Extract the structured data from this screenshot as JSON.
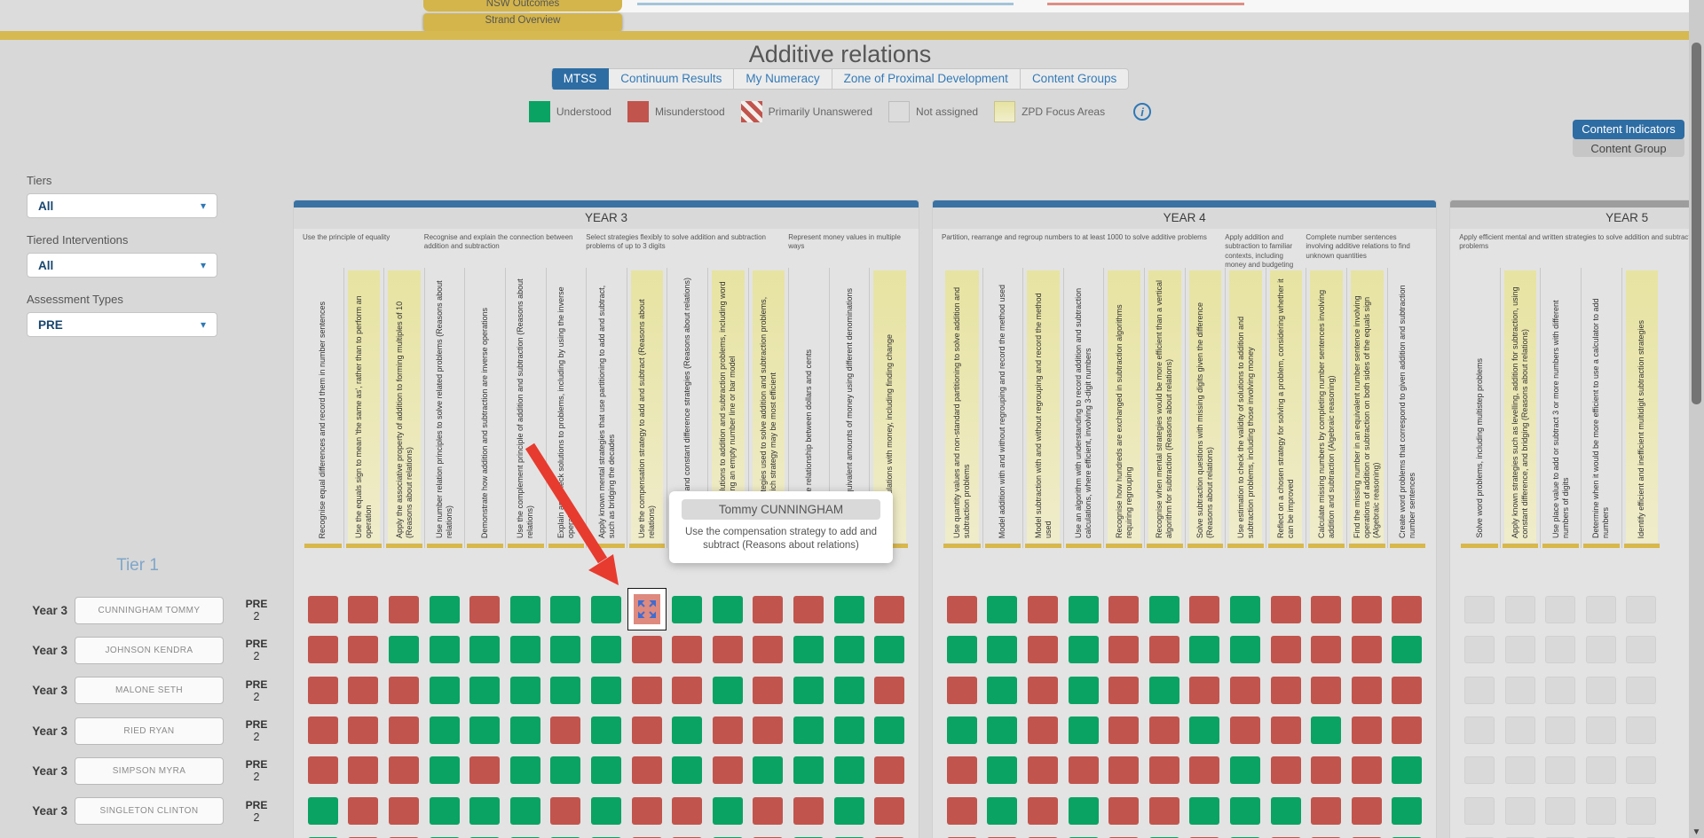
{
  "colors": {
    "understood": "#0ba364",
    "misunderstood": "#c1544c",
    "not_assigned": "#d9d9d9",
    "zpd_focus": "#e7e3a1",
    "accent_blue": "#2e6da4",
    "gold": "#d6b951",
    "year_bar_blue": "#3a72a4",
    "year_bar_gray": "#9d9d9d",
    "arrow_red": "#e63b2e"
  },
  "top": {
    "back_tabs": [
      "NSW Outcomes",
      "Strand Overview"
    ],
    "title": "Additive relations",
    "view_tabs": [
      {
        "label": "MTSS",
        "active": true
      },
      {
        "label": "Continuum Results",
        "active": false
      },
      {
        "label": "My Numeracy",
        "active": false
      },
      {
        "label": "Zone of Proximal Development",
        "active": false
      },
      {
        "label": "Content Groups",
        "active": false
      }
    ],
    "legend": [
      {
        "label": "Understood",
        "swatch": "understood"
      },
      {
        "label": "Misunderstood",
        "swatch": "misunderstood"
      },
      {
        "label": "Primarily Unanswered",
        "swatch": "striped"
      },
      {
        "label": "Not assigned",
        "swatch": "not-assigned"
      },
      {
        "label": "ZPD Focus Areas",
        "swatch": "zpd"
      }
    ],
    "info_icon": "i"
  },
  "view_toggle": {
    "primary": "Content Indicators",
    "secondary": "Content Group"
  },
  "filters": [
    {
      "label": "Tiers",
      "value": "All"
    },
    {
      "label": "Tiered Interventions",
      "value": "All"
    },
    {
      "label": "Assessment Types",
      "value": "PRE"
    }
  ],
  "tier_section": {
    "title": "Tier 1",
    "students": [
      {
        "year": "Year 3",
        "name": "CUNNINGHAM TOMMY",
        "assessment": "PRE",
        "score": "2"
      },
      {
        "year": "Year 3",
        "name": "JOHNSON KENDRA",
        "assessment": "PRE",
        "score": "2"
      },
      {
        "year": "Year 3",
        "name": "MALONE SETH",
        "assessment": "PRE",
        "score": "2"
      },
      {
        "year": "Year 3",
        "name": "RIED RYAN",
        "assessment": "PRE",
        "score": "2"
      },
      {
        "year": "Year 3",
        "name": "SIMPSON MYRA",
        "assessment": "PRE",
        "score": "2"
      },
      {
        "year": "Year 3",
        "name": "SINGLETON CLINTON",
        "assessment": "PRE",
        "score": "2"
      },
      {
        "year": "",
        "name": "",
        "assessment": "",
        "score": ""
      }
    ]
  },
  "tooltip": {
    "student": "Tommy CUNNINGHAM",
    "indicator": "Use the compensation strategy to add and subtract (Reasons about relations)"
  },
  "years": [
    {
      "label": "YEAR 3",
      "bar": "blue",
      "groups": [
        {
          "title": "Use the principle of equality",
          "cols": 3
        },
        {
          "title": "Recognise and explain the connection between addition and subtraction",
          "cols": 4
        },
        {
          "title": "Select strategies flexibly to solve addition and subtraction problems of up to 3 digits",
          "cols": 5
        },
        {
          "title": "Represent money values in multiple ways",
          "cols": 3
        }
      ],
      "columns": [
        {
          "text": "Recognise equal differences and record them in number sentences",
          "zpd": false
        },
        {
          "text": "Use the equals sign to mean 'the same as', rather than to perform an operation",
          "zpd": true
        },
        {
          "text": "Apply the associative property of addition to forming multiples of 10 (Reasons about relations)",
          "zpd": true
        },
        {
          "text": "Use number relation principles to solve related problems (Reasons about relations)",
          "zpd": false
        },
        {
          "text": "Demonstrate how addition and subtraction are inverse operations",
          "zpd": false
        },
        {
          "text": "Use the complement principle of addition and subtraction (Reasons about relations)",
          "zpd": false
        },
        {
          "text": "Explain and check solutions to problems, including by using the inverse operation",
          "zpd": false
        },
        {
          "text": "Apply known mental strategies that use partitioning to add and subtract, such as bridging the decades",
          "zpd": false
        },
        {
          "text": "Use the compensation strategy to add and subtract (Reasons about relations)",
          "zpd": true
        },
        {
          "text": "Use levelling and constant difference strategies (Reasons about relations)",
          "zpd": false
        },
        {
          "text": "Represent solutions to addition and subtraction problems, including word problems, using an empty number line or bar model",
          "zpd": true
        },
        {
          "text": "Evaluate strategies used to solve addition and subtraction problems, reasoning which strategy may be most efficient",
          "zpd": true
        },
        {
          "text": "Recognise the relationship between dollars and cents",
          "zpd": false
        },
        {
          "text": "Represent equivalent amounts of money using different denominations",
          "zpd": false
        },
        {
          "text": "Perform calculations with money, including finding change",
          "zpd": true
        }
      ],
      "rows": [
        "MMMUMUUUSUUMMUM",
        "MMUUUUUUMMMMUUU",
        "MMMUUUUUMMUMUUM",
        "MMMUUUMUMUMMUUU",
        "MMMUMUUUMUMUUUM",
        "UMMUUUMUMMUMMUM",
        "UMMUUUUUMMUMUUM"
      ]
    },
    {
      "label": "YEAR 4",
      "bar": "blue",
      "groups": [
        {
          "title": "Partition, rearrange and regroup numbers to at least 1000 to solve additive problems",
          "cols": 7
        },
        {
          "title": "Apply addition and subtraction to familiar contexts, including money and budgeting",
          "cols": 2
        },
        {
          "title": "Complete number sentences involving additive relations to find unknown quantities",
          "cols": 3
        }
      ],
      "columns": [
        {
          "text": "Use quantity values and non-standard partitioning to solve addition and subtraction problems",
          "zpd": true
        },
        {
          "text": "Model addition with and without regrouping and record the method used",
          "zpd": false
        },
        {
          "text": "Model subtraction with and without regrouping and record the method used",
          "zpd": true
        },
        {
          "text": "Use an algorithm with understanding to record addition and subtraction calculations, where efficient, involving 3-digit numbers",
          "zpd": false
        },
        {
          "text": "Recognise how hundreds are exchanged in subtraction algorithms requiring regrouping",
          "zpd": true
        },
        {
          "text": "Recognise when mental strategies would be more efficient than a vertical algorithm for subtraction (Reasons about relations)",
          "zpd": true
        },
        {
          "text": "Solve subtraction questions with missing digits given the difference (Reasons about relations)",
          "zpd": true
        },
        {
          "text": "Use estimation to check the validity of solutions to addition and subtraction problems, including those involving money",
          "zpd": true
        },
        {
          "text": "Reflect on a chosen strategy for solving a problem, considering whether it can be improved",
          "zpd": true
        },
        {
          "text": "Calculate missing numbers by completing number sentences involving addition and subtraction (Algebraic reasoning)",
          "zpd": true
        },
        {
          "text": "Find the missing number in an equivalent number sentence involving operations of addition or subtraction on both sides of the equals sign (Algebraic reasoning)",
          "zpd": true
        },
        {
          "text": "Create word problems that correspond to given addition and subtraction number sentences",
          "zpd": false
        }
      ],
      "rows": [
        "MUMUMUMUMMMM",
        "UUMUMMUUMMMU",
        "MUMUMUMMMMMM",
        "UUMUMMUMMUMM",
        "MUMMMMMUMMMU",
        "MUMUMMUUUMMU",
        "MMMUMUMUMMMU"
      ]
    },
    {
      "label": "YEAR 5",
      "bar": "gray",
      "groups": [
        {
          "title": "Apply efficient mental and written strategies to solve addition and subtraction problems",
          "cols": 5
        }
      ],
      "columns": [
        {
          "text": "Solve word problems, including multistep problems",
          "zpd": false
        },
        {
          "text": "Apply known strategies such as levelling, addition for subtraction, using constant difference, and bridging (Reasons about relations)",
          "zpd": true
        },
        {
          "text": "Use place value to add or subtract 3 or more numbers with different numbers of digits",
          "zpd": false
        },
        {
          "text": "Determine when it would be more efficient to use a calculator to add numbers",
          "zpd": false
        },
        {
          "text": "Identify efficient and inefficient multidigit subtraction strategies",
          "zpd": true
        }
      ],
      "rows": [
        "NNNNN",
        "NNNNN",
        "NNNNN",
        "NNNNN",
        "NNNNN",
        "NNNNN",
        "NNNNN"
      ]
    }
  ]
}
